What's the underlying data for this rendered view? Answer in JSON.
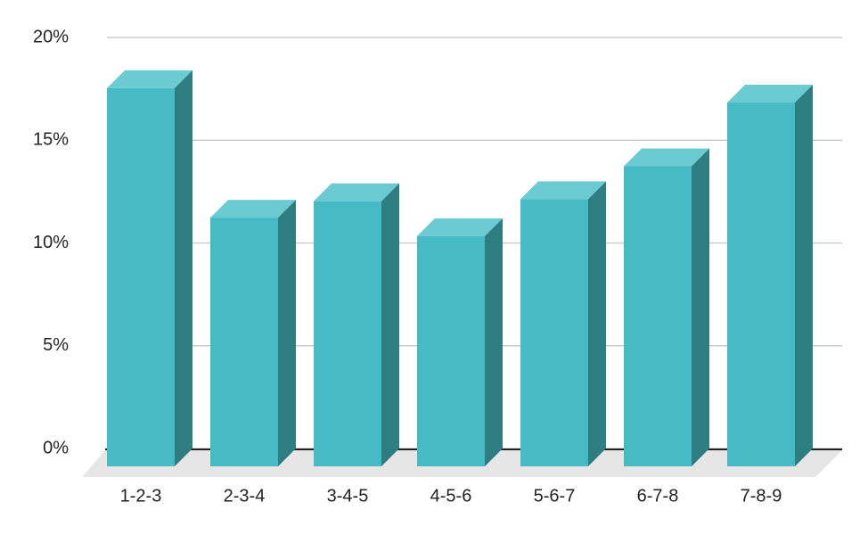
{
  "chart_data": {
    "type": "bar3d",
    "categories": [
      "1-2-3",
      "2-3-4",
      "3-4-5",
      "4-5-6",
      "5-6-7",
      "6-7-8",
      "7-8-9"
    ],
    "values": [
      18.4,
      12.1,
      12.9,
      11.2,
      13.0,
      14.6,
      17.7
    ],
    "color": "#46bbc5",
    "top_color": "#6ccbd2",
    "side_color": "#2e7d80",
    "ylim": [
      0,
      20
    ],
    "yticks": [
      {
        "value": 0,
        "label": "0%"
      },
      {
        "value": 5,
        "label": "5%"
      },
      {
        "value": 10,
        "label": "10%"
      },
      {
        "value": 15,
        "label": "15%"
      },
      {
        "value": 20,
        "label": "20%"
      }
    ],
    "grid": true
  }
}
